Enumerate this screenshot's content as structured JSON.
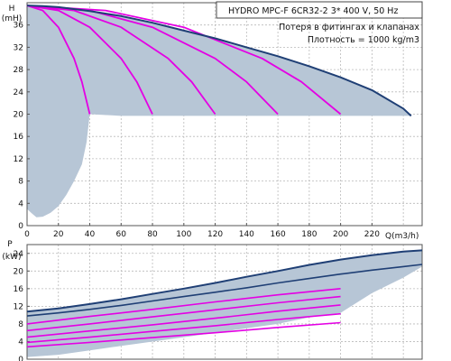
{
  "colors": {
    "grid": "#b9b9b9",
    "frame": "#555555",
    "shade": "#b7c6d6",
    "max_curve": "#1f3f75",
    "speed_curve": "#e400e4",
    "title_box": "#444444"
  },
  "chart_data": [
    {
      "type": "line",
      "title": "HYDRO MPC-F 6CR32-2    3* 400 V, 50 Hz",
      "notes": [
        "Потеря в фитингах и клапанах",
        "Плотность = 1000 kg/m3"
      ],
      "ylabel_top": "H",
      "ylabel_bottom": "(mH)",
      "xlabel": "Q(m3/h)",
      "xlim": [
        0,
        252
      ],
      "ylim": [
        0,
        40
      ],
      "grid": true,
      "x_ticks": [
        "0",
        "20",
        "40",
        "60",
        "80",
        "100",
        "120",
        "140",
        "160",
        "180",
        "200",
        "220"
      ],
      "y_ticks": [
        "0",
        "4",
        "8",
        "12",
        "16",
        "20",
        "24",
        "28",
        "32",
        "36"
      ],
      "max_speed_curve": {
        "x": [
          0,
          10,
          20,
          40,
          60,
          80,
          100,
          120,
          140,
          160,
          180,
          200,
          220,
          240,
          245
        ],
        "y": [
          39.5,
          39.4,
          39.2,
          38.5,
          37.6,
          36.4,
          35.0,
          33.6,
          32.0,
          30.4,
          28.6,
          26.6,
          24.3,
          21.0,
          19.7
        ]
      },
      "pump_count_curves": [
        {
          "x": [
            0,
            10,
            20,
            30,
            35,
            40
          ],
          "y": [
            39.5,
            38.6,
            35.6,
            30.0,
            25.8,
            20.0
          ]
        },
        {
          "x": [
            0,
            20,
            40,
            60,
            70,
            80
          ],
          "y": [
            39.5,
            38.6,
            35.6,
            30.0,
            25.8,
            20.0
          ]
        },
        {
          "x": [
            0,
            30,
            60,
            90,
            105,
            120
          ],
          "y": [
            39.5,
            38.6,
            35.6,
            30.0,
            25.8,
            20.0
          ]
        },
        {
          "x": [
            0,
            40,
            80,
            120,
            140,
            160
          ],
          "y": [
            39.5,
            38.6,
            35.6,
            30.0,
            25.8,
            20.0
          ]
        },
        {
          "x": [
            0,
            50,
            100,
            150,
            175,
            200
          ],
          "y": [
            39.5,
            38.6,
            35.6,
            30.0,
            25.8,
            20.0
          ]
        }
      ],
      "operating_area": {
        "x": [
          0,
          10,
          20,
          40,
          60,
          80,
          100,
          120,
          140,
          160,
          180,
          200,
          220,
          240,
          245,
          220,
          200,
          180,
          160,
          140,
          120,
          100,
          80,
          60,
          40,
          38,
          35,
          30,
          25,
          20,
          15,
          10,
          6,
          3,
          0
        ],
        "y": [
          39.5,
          39.4,
          39.2,
          38.5,
          37.6,
          36.4,
          35.0,
          33.6,
          32.0,
          30.4,
          28.6,
          26.6,
          24.3,
          21.0,
          19.7,
          19.7,
          19.7,
          19.7,
          19.7,
          19.7,
          19.7,
          19.7,
          19.7,
          19.7,
          20.0,
          15.0,
          11.0,
          8.0,
          5.5,
          3.5,
          2.3,
          1.6,
          1.5,
          2.2,
          3.0
        ]
      }
    },
    {
      "type": "line",
      "ylabel_top": "P",
      "ylabel_bottom": "(kW)",
      "xlim": [
        0,
        252
      ],
      "ylim": [
        0,
        26
      ],
      "grid": true,
      "y_ticks": [
        "0",
        "4",
        "8",
        "12",
        "16",
        "20",
        "24"
      ],
      "max_power_curve": {
        "x": [
          0,
          20,
          40,
          60,
          80,
          100,
          120,
          140,
          160,
          180,
          200,
          220,
          240,
          252
        ],
        "y": [
          10.8,
          11.5,
          12.5,
          13.6,
          14.8,
          16.0,
          17.3,
          18.7,
          20.0,
          21.4,
          22.6,
          23.6,
          24.4,
          24.7
        ]
      },
      "p1_curve": {
        "x": [
          0,
          20,
          40,
          60,
          80,
          100,
          120,
          140,
          160,
          180,
          200,
          220,
          240,
          252
        ],
        "y": [
          9.8,
          10.5,
          11.3,
          12.2,
          13.2,
          14.2,
          15.2,
          16.2,
          17.3,
          18.3,
          19.3,
          20.2,
          21.0,
          21.5
        ]
      },
      "speed_power_curves": [
        {
          "x": [
            0,
            40,
            80,
            120,
            160,
            200
          ],
          "y": [
            8.0,
            9.7,
            11.3,
            13.0,
            14.6,
            16.0
          ]
        },
        {
          "x": [
            0,
            40,
            80,
            120,
            160,
            200
          ],
          "y": [
            6.5,
            8.0,
            9.6,
            11.2,
            12.8,
            14.2
          ]
        },
        {
          "x": [
            0,
            40,
            80,
            120,
            160,
            200
          ],
          "y": [
            5.0,
            6.4,
            7.8,
            9.3,
            10.9,
            12.3
          ]
        },
        {
          "x": [
            0,
            40,
            80,
            120,
            160,
            200
          ],
          "y": [
            3.8,
            5.0,
            6.3,
            7.6,
            9.0,
            10.3
          ]
        },
        {
          "x": [
            0,
            40,
            80,
            120,
            160,
            200
          ],
          "y": [
            2.8,
            3.8,
            4.9,
            6.0,
            7.2,
            8.3
          ]
        }
      ],
      "operating_area": {
        "x": [
          0,
          20,
          40,
          60,
          80,
          100,
          120,
          140,
          160,
          180,
          200,
          220,
          240,
          252,
          252,
          240,
          220,
          200,
          180,
          160,
          140,
          120,
          100,
          80,
          60,
          40,
          20,
          0
        ],
        "y": [
          10.8,
          11.5,
          12.5,
          13.6,
          14.8,
          16.0,
          17.3,
          18.7,
          20.0,
          21.4,
          22.6,
          23.6,
          24.4,
          24.7,
          21.0,
          18.5,
          15.0,
          10.5,
          9.5,
          8.0,
          7.0,
          6.0,
          5.0,
          4.0,
          3.0,
          2.0,
          1.0,
          0.5
        ]
      }
    }
  ]
}
